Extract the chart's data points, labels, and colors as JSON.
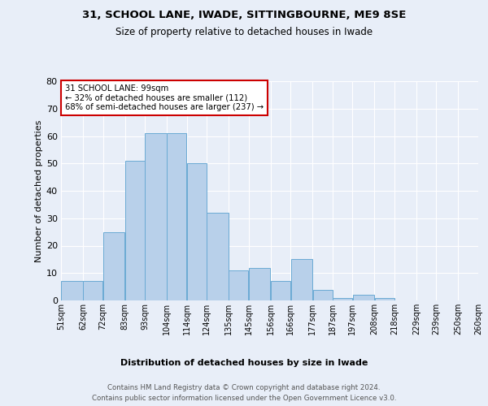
{
  "title1": "31, SCHOOL LANE, IWADE, SITTINGBOURNE, ME9 8SE",
  "title2": "Size of property relative to detached houses in Iwade",
  "xlabel": "Distribution of detached houses by size in Iwade",
  "ylabel": "Number of detached properties",
  "bar_labels": [
    "51sqm",
    "62sqm",
    "72sqm",
    "83sqm",
    "93sqm",
    "104sqm",
    "114sqm",
    "124sqm",
    "135sqm",
    "145sqm",
    "156sqm",
    "166sqm",
    "177sqm",
    "187sqm",
    "197sqm",
    "208sqm",
    "218sqm",
    "229sqm",
    "239sqm",
    "250sqm",
    "260sqm"
  ],
  "bin_edges": [
    51,
    62,
    72,
    83,
    93,
    104,
    114,
    124,
    135,
    145,
    156,
    166,
    177,
    187,
    197,
    208,
    218,
    229,
    239,
    250,
    260
  ],
  "bar_heights": [
    7,
    7,
    25,
    51,
    61,
    61,
    50,
    32,
    11,
    12,
    7,
    15,
    4,
    1,
    2,
    1,
    0,
    0,
    0,
    0
  ],
  "bar_color": "#b8d0ea",
  "bar_edge_color": "#6aaad4",
  "bg_color": "#e8eef8",
  "plot_bg_color": "#e8eef8",
  "grid_color": "#ffffff",
  "annotation_box_color": "#cc0000",
  "annotation_text": "31 SCHOOL LANE: 99sqm\n← 32% of detached houses are smaller (112)\n68% of semi-detached houses are larger (237) →",
  "ylim": [
    0,
    80
  ],
  "yticks": [
    0,
    10,
    20,
    30,
    40,
    50,
    60,
    70,
    80
  ],
  "footer1": "Contains HM Land Registry data © Crown copyright and database right 2024.",
  "footer2": "Contains public sector information licensed under the Open Government Licence v3.0."
}
